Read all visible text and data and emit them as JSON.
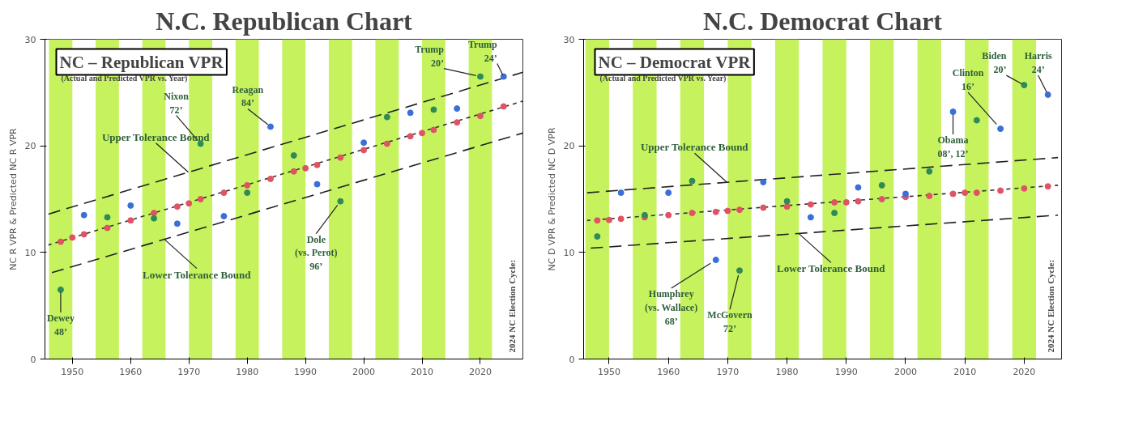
{
  "chart_data": [
    {
      "type": "scatter",
      "title": "N.C. Republican Chart",
      "subtitle": "NC – Republican VPR",
      "ylabel": "NC R VPR & Predicted NC R VPR",
      "xlim": [
        1945.3,
        2027.3
      ],
      "ylim": [
        0,
        30
      ],
      "xticks": [
        1950,
        1960,
        1970,
        1980,
        1990,
        2000,
        2010,
        2020
      ],
      "yticks": [
        0,
        10,
        20,
        30
      ],
      "grid": false,
      "bands": [
        {
          "axis": "x",
          "from": 1946,
          "to": 1950,
          "color": "#c6f25e"
        },
        {
          "axis": "x",
          "from": 1954,
          "to": 1958,
          "color": "#c6f25e"
        },
        {
          "axis": "x",
          "from": 1962,
          "to": 1966,
          "color": "#c6f25e"
        },
        {
          "axis": "x",
          "from": 1970,
          "to": 1974,
          "color": "#c6f25e"
        },
        {
          "axis": "x",
          "from": 1978,
          "to": 1982,
          "color": "#c6f25e"
        },
        {
          "axis": "x",
          "from": 1986,
          "to": 1990,
          "color": "#c6f25e"
        },
        {
          "axis": "x",
          "from": 1994,
          "to": 1998,
          "color": "#c6f25e"
        },
        {
          "axis": "x",
          "from": 2002,
          "to": 2006,
          "color": "#c6f25e"
        },
        {
          "axis": "x",
          "from": 2010,
          "to": 2014,
          "color": "#c6f25e"
        },
        {
          "axis": "x",
          "from": 2018,
          "to": 2022,
          "color": "#c6f25e"
        }
      ],
      "series": [
        {
          "type": "line",
          "line_style": "dashed",
          "color": "#222222",
          "name": "Upper Tolerance Bound",
          "x": [
            1945.9,
            2027.3
          ],
          "values": [
            13.6,
            26.9
          ]
        },
        {
          "type": "line",
          "line_style": "dashed",
          "color": "#222222",
          "name": "Lower Tolerance Bound",
          "x": [
            1946.5,
            2027.3
          ],
          "values": [
            8.1,
            21.2
          ]
        },
        {
          "type": "line",
          "line_style": "dotted",
          "color": "#333333",
          "x": [
            1945.9,
            2027.3
          ],
          "values": [
            10.7,
            24.2
          ]
        },
        {
          "marker": "circle",
          "color": "#e05264",
          "x": [
            1948,
            1950,
            1952,
            1956,
            1960,
            1964,
            1968,
            1970,
            1972,
            1976,
            1980,
            1984,
            1988,
            1990,
            1992,
            1996,
            2000,
            2004,
            2008,
            2010,
            2012,
            2016,
            2020,
            2024
          ],
          "values": [
            11.0,
            11.4,
            11.7,
            12.3,
            13.0,
            13.7,
            14.3,
            14.6,
            15.0,
            15.6,
            16.3,
            16.9,
            17.6,
            17.9,
            18.2,
            18.9,
            19.6,
            20.2,
            20.9,
            21.2,
            21.5,
            22.2,
            22.8,
            23.7
          ]
        },
        {
          "marker": "circle",
          "x": [
            1948,
            1952,
            1956,
            1960,
            1964,
            1968,
            1972,
            1976,
            1980,
            1984,
            1988,
            1992,
            1996,
            2000,
            2004,
            2008,
            2012,
            2016,
            2020,
            2024
          ],
          "values": [
            6.5,
            13.5,
            13.3,
            14.4,
            13.2,
            12.7,
            20.2,
            13.4,
            15.6,
            21.8,
            19.1,
            16.4,
            14.8,
            20.3,
            22.7,
            23.1,
            23.4,
            23.5,
            26.5,
            26.5
          ],
          "colors": [
            "#2e8b57",
            "#3a6fd8",
            "#2e8b57",
            "#3a6fd8",
            "#2e8b57",
            "#3a6fd8",
            "#2e8b57",
            "#3a6fd8",
            "#2e8b57",
            "#3a6fd8",
            "#2e8b57",
            "#3a6fd8",
            "#2e8b57",
            "#3a6fd8",
            "#2e8b57",
            "#3a6fd8",
            "#2e8b57",
            "#3a6fd8",
            "#2e8b57",
            "#3a6fd8"
          ]
        }
      ],
      "annotations": [
        "(Actual and Predicted VPR vs. Year)",
        "2024 NC Election Cycle:",
        {
          "text": "Dewey\n48’",
          "x": 1948,
          "y": 6.5
        },
        {
          "text": "Nixon\n72’",
          "x": 1972,
          "y": 20.2
        },
        {
          "text": "Reagan\n84’",
          "x": 1984,
          "y": 21.8
        },
        {
          "text": "Dole\n(vs. Perot)\n96’",
          "x": 1996,
          "y": 14.8
        },
        {
          "text": "Trump\n20’",
          "x": 2020,
          "y": 26.5
        },
        {
          "text": "Trump\n24’",
          "x": 2024,
          "y": 26.5
        }
      ]
    },
    {
      "type": "scatter",
      "title": "N.C. Democrat Chart",
      "subtitle": "NC – Democrat VPR",
      "ylabel": "NC D VPR & Predicted NC D VPR",
      "xlim": [
        1945.7,
        2026.3
      ],
      "ylim": [
        0,
        30
      ],
      "xticks": [
        1950,
        1960,
        1970,
        1980,
        1990,
        2000,
        2010,
        2020
      ],
      "yticks": [
        0,
        10,
        20,
        30
      ],
      "grid": false,
      "bands": [
        {
          "axis": "x",
          "from": 1946,
          "to": 1950,
          "color": "#c6f25e"
        },
        {
          "axis": "x",
          "from": 1954,
          "to": 1958,
          "color": "#c6f25e"
        },
        {
          "axis": "x",
          "from": 1962,
          "to": 1966,
          "color": "#c6f25e"
        },
        {
          "axis": "x",
          "from": 1970,
          "to": 1974,
          "color": "#c6f25e"
        },
        {
          "axis": "x",
          "from": 1978,
          "to": 1982,
          "color": "#c6f25e"
        },
        {
          "axis": "x",
          "from": 1986,
          "to": 1990,
          "color": "#c6f25e"
        },
        {
          "axis": "x",
          "from": 1994,
          "to": 1998,
          "color": "#c6f25e"
        },
        {
          "axis": "x",
          "from": 2002,
          "to": 2006,
          "color": "#c6f25e"
        },
        {
          "axis": "x",
          "from": 2010,
          "to": 2014,
          "color": "#c6f25e"
        },
        {
          "axis": "x",
          "from": 2018,
          "to": 2022,
          "color": "#c6f25e"
        }
      ],
      "series": [
        {
          "type": "line",
          "line_style": "dashed",
          "color": "#222222",
          "name": "Upper Tolerance Bound",
          "x": [
            1946.3,
            2025.7
          ],
          "values": [
            15.6,
            18.9
          ]
        },
        {
          "type": "line",
          "line_style": "dashed",
          "color": "#222222",
          "name": "Lower Tolerance Bound",
          "x": [
            1946.9,
            2025.7
          ],
          "values": [
            10.4,
            13.5
          ]
        },
        {
          "type": "line",
          "line_style": "dotted",
          "color": "#333333",
          "x": [
            1946.3,
            2025.7
          ],
          "values": [
            13.0,
            16.3
          ]
        },
        {
          "marker": "circle",
          "color": "#e05264",
          "x": [
            1948,
            1950,
            1952,
            1956,
            1960,
            1964,
            1968,
            1970,
            1972,
            1976,
            1980,
            1984,
            1988,
            1990,
            1992,
            1996,
            2000,
            2004,
            2008,
            2010,
            2012,
            2016,
            2020,
            2024
          ],
          "values": [
            13.0,
            13.05,
            13.15,
            13.3,
            13.5,
            13.7,
            13.8,
            13.9,
            14.0,
            14.2,
            14.3,
            14.5,
            14.7,
            14.7,
            14.8,
            15.0,
            15.2,
            15.3,
            15.5,
            15.6,
            15.6,
            15.8,
            16.0,
            16.2
          ]
        },
        {
          "marker": "circle",
          "x": [
            1948,
            1952,
            1956,
            1960,
            1964,
            1968,
            1972,
            1976,
            1980,
            1984,
            1988,
            1992,
            1996,
            2000,
            2004,
            2008,
            2012,
            2016,
            2020,
            2024
          ],
          "values": [
            11.5,
            15.6,
            13.5,
            15.6,
            16.7,
            9.3,
            8.3,
            16.6,
            14.8,
            13.3,
            13.7,
            16.1,
            16.3,
            15.5,
            17.6,
            23.2,
            22.4,
            21.6,
            25.7,
            24.8
          ],
          "colors": [
            "#2e8b57",
            "#3a6fd8",
            "#2e8b57",
            "#3a6fd8",
            "#2e8b57",
            "#3a6fd8",
            "#2e8b57",
            "#3a6fd8",
            "#2e8b57",
            "#3a6fd8",
            "#2e8b57",
            "#3a6fd8",
            "#2e8b57",
            "#3a6fd8",
            "#2e8b57",
            "#3a6fd8",
            "#2e8b57",
            "#3a6fd8",
            "#2e8b57",
            "#3a6fd8"
          ]
        }
      ],
      "annotations": [
        "(Actual and Predicted VPR vs. Year)",
        "2024 NC Election Cycle:",
        {
          "text": "Humphrey\n(vs. Wallace)\n68’",
          "x": 1968,
          "y": 9.3
        },
        {
          "text": "McGovern\n72’",
          "x": 1972,
          "y": 8.3
        },
        {
          "text": "Obama\n08’, 12’",
          "x": 2008,
          "y": 23.2
        },
        {
          "text": "Clinton\n16’",
          "x": 2016,
          "y": 21.6
        },
        {
          "text": "Biden\n20’",
          "x": 2020,
          "y": 25.7
        },
        {
          "text": "Harris\n24’",
          "x": 2024,
          "y": 24.8
        }
      ]
    }
  ]
}
